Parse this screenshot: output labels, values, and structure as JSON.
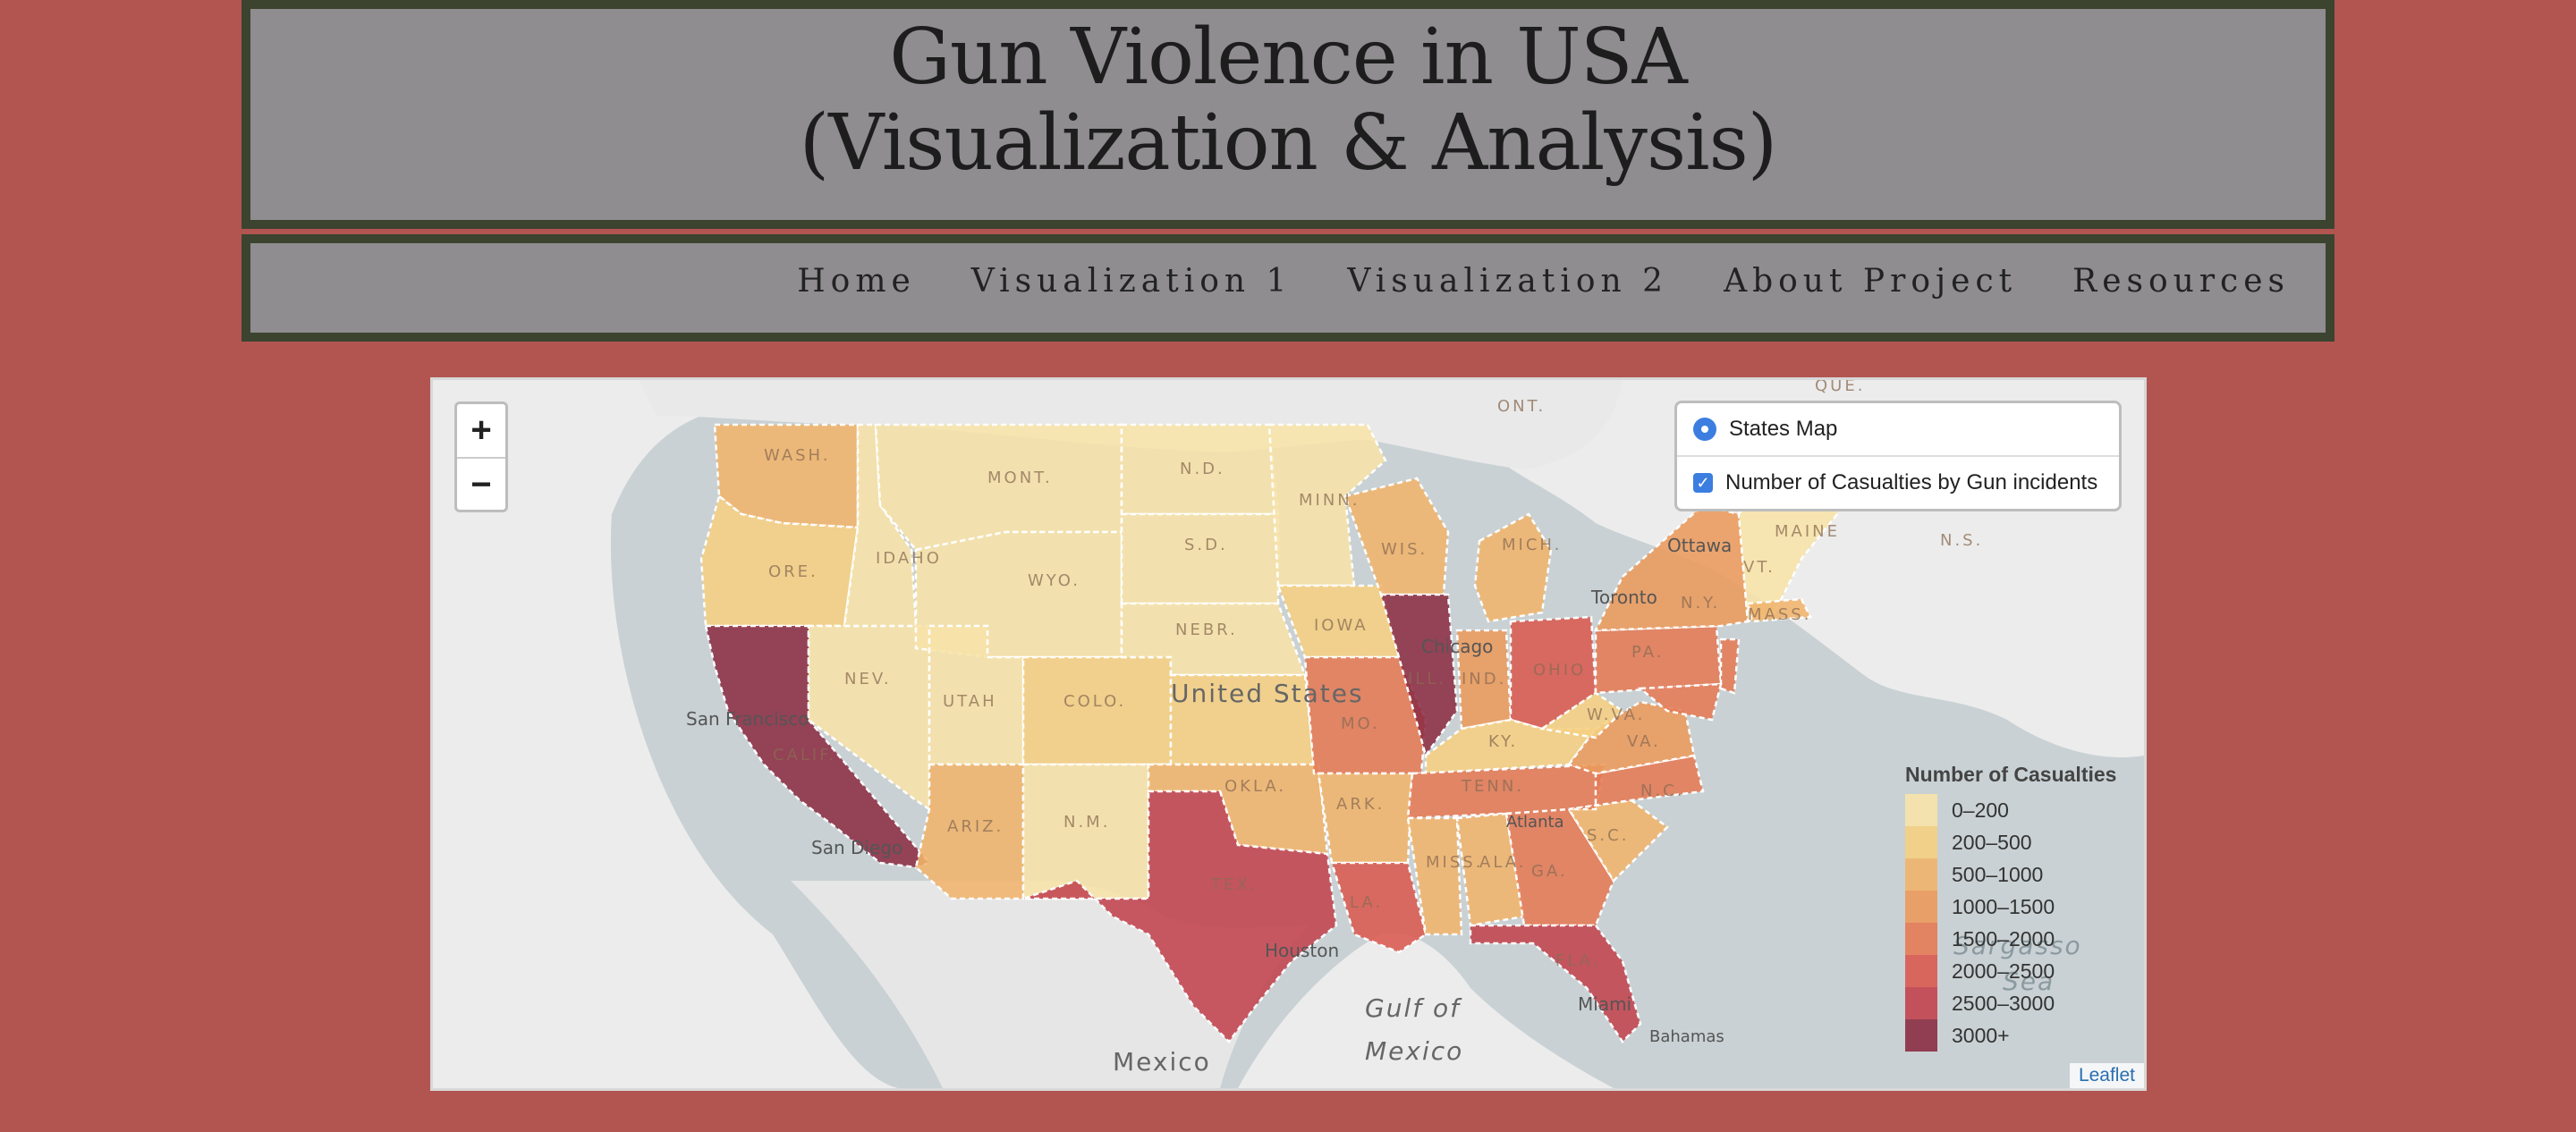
{
  "header": {
    "title_line1": "Gun Violence in USA",
    "title_line2": "(Visualization & Analysis)"
  },
  "nav": {
    "items": [
      "Home",
      "Visualization 1",
      "Visualization 2",
      "About Project",
      "Resources"
    ]
  },
  "map": {
    "zoom_in": "+",
    "zoom_out": "−",
    "layers": {
      "base": "States Map",
      "overlay": "Number of Casualties by Gun incidents"
    },
    "legend": {
      "title": "Number of Casualties",
      "items": [
        {
          "label": "0–200",
          "color": "#f7e3a8"
        },
        {
          "label": "200–500",
          "color": "#f5cf82"
        },
        {
          "label": "500–1000",
          "color": "#f0b46c"
        },
        {
          "label": "1000–1500",
          "color": "#eb9a5c"
        },
        {
          "label": "1500–2000",
          "color": "#e47a55"
        },
        {
          "label": "2000–2500",
          "color": "#d95a50"
        },
        {
          "label": "2500–3000",
          "color": "#c2434f"
        },
        {
          "label": "3000+",
          "color": "#8c2d44"
        }
      ]
    },
    "attribution": "Leaflet",
    "place_labels": {
      "country": "United States",
      "mexico": "Mexico",
      "gulf_line1": "Gulf of",
      "gulf_line2": "Mexico",
      "sargasso_line1": "Sargasso",
      "sargasso_line2": "Sea",
      "ont": "ONT.",
      "que": "QUE.",
      "ns": "N.S.",
      "ottawa": "Ottawa",
      "toronto": "Toronto",
      "chicago": "Chicago",
      "san_francisco": "San Francisco",
      "san_diego": "San Diego",
      "houston": "Houston",
      "miami": "Miami",
      "bahamas": "Bahamas",
      "atlanta": "Atlanta"
    },
    "state_labels": {
      "wash": "WASH.",
      "ore": "ORE.",
      "idaho": "IDAHO",
      "mont": "MONT.",
      "wyo": "WYO.",
      "nd": "N.D.",
      "sd": "S.D.",
      "nebr": "NEBR.",
      "minn": "MINN.",
      "iowa": "IOWA",
      "wis": "WIS.",
      "mich": "MICH.",
      "ill": "ILL.",
      "ind": "IND.",
      "ohio": "OHIO",
      "pa": "PA.",
      "ny": "N.Y.",
      "maine": "MAINE",
      "nev": "NEV.",
      "utah": "UTAH",
      "colo": "COLO.",
      "calif": "CALIF.",
      "ariz": "ARIZ.",
      "nm": "N.M.",
      "okla": "OKLA.",
      "tex": "TEX.",
      "ark": "ARK.",
      "mo": "MO.",
      "ky": "KY.",
      "tenn": "TENN.",
      "wva": "W.VA.",
      "va": "VA.",
      "nc": "N.C.",
      "sc": "S.C.",
      "ga": "GA.",
      "ala": "ALA.",
      "miss": "MISS.",
      "la": "LA.",
      "fla": "FLA.",
      "vt": "VT.",
      "mass": "MASS."
    }
  }
}
